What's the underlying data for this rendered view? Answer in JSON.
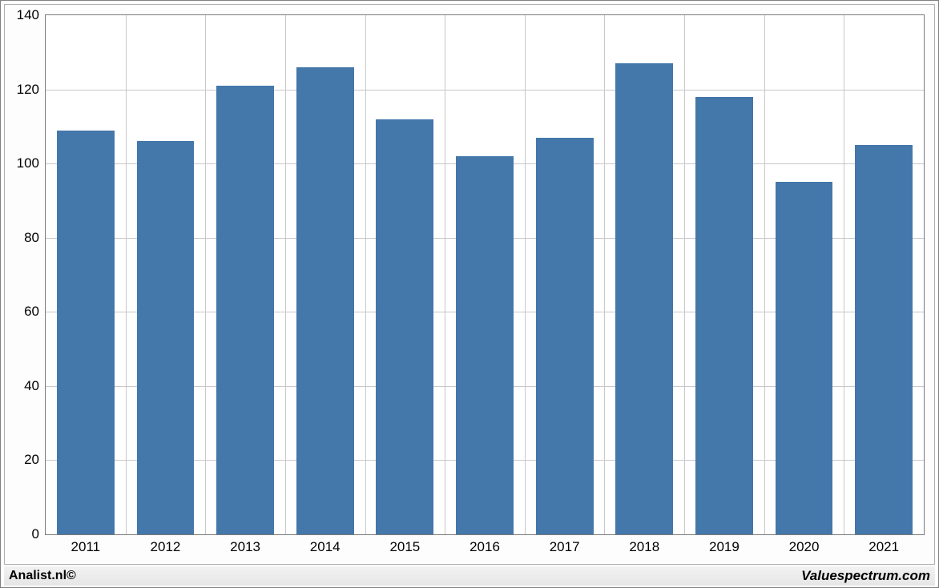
{
  "chart": {
    "type": "bar",
    "background_color": "#ffffff",
    "panel_background": "#fdfdfd",
    "panel_border_color": "#b0b0b0",
    "plot_border_color": "#7a7a7a",
    "grid_color": "#c8c8c8",
    "bar_color": "#4477aa",
    "tick_font_size": 17,
    "tick_color": "#000000",
    "ylim": [
      0,
      140
    ],
    "ytick_step": 20,
    "yticks": [
      0,
      20,
      40,
      60,
      80,
      100,
      120,
      140
    ],
    "categories": [
      "2011",
      "2012",
      "2013",
      "2014",
      "2015",
      "2016",
      "2017",
      "2018",
      "2019",
      "2020",
      "2021"
    ],
    "values": [
      109,
      106,
      121,
      126,
      112,
      102,
      107,
      127,
      118,
      95,
      105
    ],
    "bar_width_ratio": 0.72
  },
  "footer": {
    "left": "Analist.nl©",
    "right": "Valuespectrum.com",
    "background": "#ebebeb",
    "text_color": "#000000",
    "left_font_size": 16,
    "right_font_size": 17
  }
}
